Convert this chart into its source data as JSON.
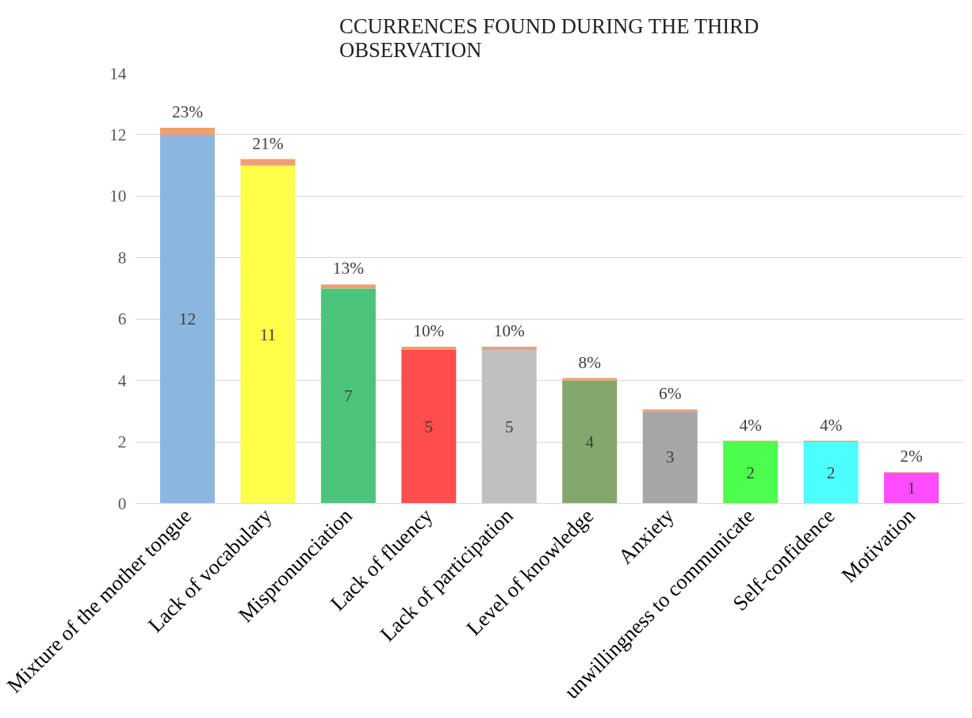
{
  "chart_data": {
    "type": "bar",
    "stacked": true,
    "title": "CCURRENCES FOUND DURING THE THIRD OBSERVATION",
    "categories": [
      "Mixture of the mother tongue",
      "Lack of vocabulary",
      "Mispronunciation",
      "Lack of fluency",
      "Lack of participation",
      "Level of knowledge",
      "Anxiety",
      "unwillingness to communicate",
      "Self-confidence",
      "Motivation"
    ],
    "series": [
      {
        "colors": [
          "#8ab6e0",
          "#ffff4a",
          "#4cc47c",
          "#ff4c4c",
          "#c0c0c0",
          "#84a86c",
          "#a6a6a6",
          "#4cff4c",
          "#4cffff",
          "#ff4cff"
        ],
        "values": [
          12,
          11,
          7,
          5,
          5,
          4,
          3,
          2,
          2,
          1
        ],
        "value_labels": [
          "12",
          "11",
          "7",
          "5",
          "5",
          "4",
          "3",
          "2",
          "2",
          "1"
        ]
      },
      {
        "color": "#f0a070",
        "values": [
          0.23,
          0.21,
          0.13,
          0.1,
          0.1,
          0.08,
          0.06,
          0.04,
          0.04,
          0.02
        ],
        "value_labels": [
          "23%",
          "21%",
          "13%",
          "10%",
          "10%",
          "8%",
          "6%",
          "4%",
          "4%",
          "2%"
        ]
      }
    ],
    "ylim": [
      0,
      14
    ],
    "yticks": [
      0,
      2,
      4,
      6,
      8,
      10,
      12,
      14
    ],
    "grid": "y"
  }
}
